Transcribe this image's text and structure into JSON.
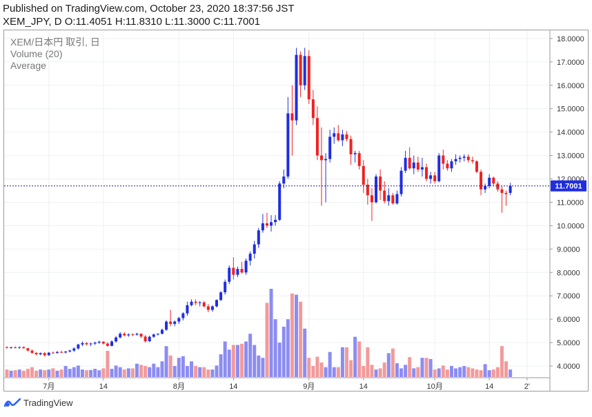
{
  "header": {
    "published": "Published on TradingView.com, October 23, 2020 18:37:56 JST",
    "ohlc": "XEM_JPY, D O:11.4051 H:11.8310 L:11.3000 C:11.7001"
  },
  "legend": {
    "symbol": "XEM/日本円 取引, 日",
    "volume": "Volume (20)",
    "average": "Average"
  },
  "footer": {
    "brand": "TradingView",
    "logo_icon": "tradingview-logo-icon"
  },
  "colors": {
    "up": "#1f2ee0",
    "down": "#ee2222",
    "vol_up": "#8c8cf2",
    "vol_down": "#f29a9a",
    "price_line": "#1a1a8a",
    "price_label_bg": "#1f2ee0"
  },
  "chart_data": {
    "type": "candlestick",
    "y_axis": {
      "ylim": [
        3.5,
        18.35
      ],
      "ticks": [
        "18.0000",
        "17.0000",
        "16.0000",
        "15.0000",
        "14.0000",
        "13.0000",
        "12.0000",
        "11.0000",
        "10.0000",
        "9.0000",
        "8.0000",
        "7.0000",
        "6.0000",
        "5.0000",
        "4.0000"
      ],
      "current_price_label": "11.7001",
      "current_price": 11.7001
    },
    "x_axis": {
      "ticks": [
        {
          "label": "7月",
          "index": 10
        },
        {
          "label": "14",
          "index": 23
        },
        {
          "label": "8月",
          "index": 41
        },
        {
          "label": "14",
          "index": 54
        },
        {
          "label": "9月",
          "index": 72
        },
        {
          "label": "14",
          "index": 85
        },
        {
          "label": "10月",
          "index": 102
        },
        {
          "label": "14",
          "index": 115
        },
        {
          "label": "2'",
          "index": 124
        }
      ]
    },
    "price_range": [
      7.4,
      17.6
    ],
    "volume_max": 7.3,
    "volume_baseline": 3.75,
    "volume_scale": 0.45,
    "candles": [
      [
        4.8,
        4.85,
        4.75,
        4.78
      ],
      [
        4.78,
        4.83,
        4.74,
        4.8
      ],
      [
        4.8,
        4.84,
        4.75,
        4.79
      ],
      [
        4.79,
        4.83,
        4.73,
        4.81
      ],
      [
        4.81,
        4.84,
        4.74,
        4.76
      ],
      [
        4.76,
        4.78,
        4.62,
        4.66
      ],
      [
        4.66,
        4.7,
        4.52,
        4.56
      ],
      [
        4.56,
        4.6,
        4.46,
        4.5
      ],
      [
        4.5,
        4.58,
        4.46,
        4.55
      ],
      [
        4.55,
        4.6,
        4.4,
        4.46
      ],
      [
        4.46,
        4.6,
        4.44,
        4.57
      ],
      [
        4.57,
        4.62,
        4.52,
        4.56
      ],
      [
        4.56,
        4.64,
        4.52,
        4.6
      ],
      [
        4.6,
        4.66,
        4.55,
        4.58
      ],
      [
        4.58,
        4.64,
        4.54,
        4.62
      ],
      [
        4.62,
        4.7,
        4.58,
        4.66
      ],
      [
        4.66,
        4.8,
        4.6,
        4.75
      ],
      [
        4.75,
        4.95,
        4.7,
        4.92
      ],
      [
        4.92,
        5.05,
        4.85,
        4.98
      ],
      [
        4.98,
        5.02,
        4.88,
        4.93
      ],
      [
        4.93,
        5.0,
        4.85,
        4.96
      ],
      [
        4.96,
        5.04,
        4.9,
        5.0
      ],
      [
        5.0,
        5.08,
        4.95,
        5.04
      ],
      [
        5.04,
        5.06,
        4.92,
        4.96
      ],
      [
        4.96,
        5.02,
        4.82,
        4.86
      ],
      [
        4.86,
        5.1,
        4.84,
        5.05
      ],
      [
        5.05,
        5.28,
        5.0,
        5.22
      ],
      [
        5.22,
        5.45,
        5.18,
        5.38
      ],
      [
        5.38,
        5.45,
        5.26,
        5.31
      ],
      [
        5.31,
        5.4,
        5.25,
        5.35
      ],
      [
        5.35,
        5.4,
        5.28,
        5.34
      ],
      [
        5.34,
        5.42,
        5.3,
        5.38
      ],
      [
        5.38,
        5.4,
        5.2,
        5.26
      ],
      [
        5.26,
        5.32,
        5.0,
        5.06
      ],
      [
        5.06,
        5.3,
        5.02,
        5.25
      ],
      [
        5.25,
        5.38,
        5.2,
        5.35
      ],
      [
        5.35,
        5.4,
        5.3,
        5.38
      ],
      [
        5.38,
        5.6,
        5.35,
        5.55
      ],
      [
        5.55,
        5.95,
        5.5,
        5.9
      ],
      [
        5.9,
        6.4,
        5.7,
        5.8
      ],
      [
        5.8,
        5.95,
        5.7,
        5.9
      ],
      [
        5.9,
        6.1,
        5.8,
        6.05
      ],
      [
        6.05,
        6.3,
        5.95,
        6.25
      ],
      [
        6.25,
        6.75,
        6.15,
        6.6
      ],
      [
        6.6,
        6.85,
        6.55,
        6.75
      ],
      [
        6.75,
        6.85,
        6.6,
        6.7
      ],
      [
        6.7,
        6.78,
        6.55,
        6.72
      ],
      [
        6.72,
        6.78,
        6.5,
        6.55
      ],
      [
        6.55,
        6.65,
        6.3,
        6.4
      ],
      [
        6.4,
        6.6,
        6.32,
        6.55
      ],
      [
        6.55,
        6.85,
        6.5,
        6.82
      ],
      [
        6.82,
        7.2,
        6.78,
        7.15
      ],
      [
        7.15,
        7.7,
        7.05,
        7.6
      ],
      [
        7.6,
        8.3,
        7.5,
        8.2
      ],
      [
        8.2,
        8.65,
        7.7,
        7.9
      ],
      [
        7.9,
        8.25,
        7.8,
        8.15
      ],
      [
        8.15,
        8.45,
        7.95,
        8.0
      ],
      [
        8.0,
        8.6,
        7.9,
        8.5
      ],
      [
        8.5,
        8.9,
        8.3,
        8.8
      ],
      [
        8.8,
        9.35,
        8.6,
        9.2
      ],
      [
        9.2,
        9.9,
        9.05,
        9.8
      ],
      [
        9.8,
        10.5,
        9.7,
        10.1
      ],
      [
        10.1,
        10.55,
        9.9,
        10.0
      ],
      [
        10.0,
        10.45,
        9.75,
        10.15
      ],
      [
        10.15,
        10.45,
        10.0,
        10.25
      ],
      [
        10.25,
        11.9,
        10.2,
        11.8
      ],
      [
        11.8,
        12.4,
        11.6,
        12.1
      ],
      [
        12.1,
        15.5,
        12.0,
        14.8
      ],
      [
        14.8,
        16.0,
        13.0,
        14.5
      ],
      [
        14.5,
        17.6,
        14.3,
        17.3
      ],
      [
        17.3,
        17.45,
        15.5,
        16.0
      ],
      [
        16.0,
        17.6,
        15.8,
        17.25
      ],
      [
        17.25,
        17.5,
        15.2,
        15.4
      ],
      [
        15.4,
        15.8,
        14.3,
        14.6
      ],
      [
        14.6,
        15.1,
        12.8,
        13.0
      ],
      [
        13.0,
        14.2,
        10.85,
        12.8
      ],
      [
        12.8,
        13.1,
        11.0,
        12.85
      ],
      [
        12.85,
        14.1,
        12.7,
        13.8
      ],
      [
        13.8,
        14.2,
        13.5,
        13.95
      ],
      [
        13.95,
        14.3,
        13.6,
        13.65
      ],
      [
        13.65,
        14.1,
        13.4,
        13.9
      ],
      [
        13.9,
        14.05,
        13.6,
        13.7
      ],
      [
        13.7,
        13.85,
        12.6,
        13.05
      ],
      [
        13.05,
        13.2,
        12.7,
        13.1
      ],
      [
        13.1,
        13.2,
        12.4,
        12.55
      ],
      [
        12.55,
        12.8,
        11.4,
        11.75
      ],
      [
        11.75,
        12.0,
        10.9,
        11.3
      ],
      [
        11.3,
        11.6,
        10.2,
        11.0
      ],
      [
        11.0,
        12.2,
        10.95,
        12.1
      ],
      [
        12.1,
        12.4,
        11.1,
        11.5
      ],
      [
        11.5,
        11.9,
        10.95,
        11.05
      ],
      [
        11.05,
        11.6,
        10.85,
        11.3
      ],
      [
        11.3,
        11.4,
        10.9,
        10.95
      ],
      [
        10.95,
        11.5,
        10.9,
        11.35
      ],
      [
        11.35,
        12.5,
        11.25,
        12.35
      ],
      [
        12.35,
        13.2,
        12.25,
        12.9
      ],
      [
        12.9,
        13.35,
        12.4,
        12.45
      ],
      [
        12.45,
        13.0,
        12.2,
        12.7
      ],
      [
        12.7,
        12.95,
        12.3,
        12.4
      ],
      [
        12.4,
        12.9,
        12.1,
        12.5
      ],
      [
        12.5,
        12.65,
        11.9,
        12.0
      ],
      [
        12.0,
        12.3,
        11.8,
        12.15
      ],
      [
        12.15,
        12.3,
        11.8,
        11.9
      ],
      [
        11.9,
        13.1,
        11.85,
        13.0
      ],
      [
        13.0,
        13.25,
        12.4,
        12.65
      ],
      [
        12.65,
        12.8,
        12.35,
        12.45
      ],
      [
        12.45,
        12.85,
        12.3,
        12.75
      ],
      [
        12.75,
        13.05,
        12.6,
        12.85
      ],
      [
        12.85,
        13.0,
        12.7,
        12.9
      ],
      [
        12.9,
        13.05,
        12.75,
        12.95
      ],
      [
        12.95,
        13.05,
        12.7,
        12.8
      ],
      [
        12.8,
        12.95,
        12.65,
        12.75
      ],
      [
        12.75,
        12.8,
        12.25,
        12.3
      ],
      [
        12.3,
        12.4,
        11.3,
        11.55
      ],
      [
        11.55,
        11.8,
        11.4,
        11.7
      ],
      [
        11.7,
        12.2,
        11.6,
        12.05
      ],
      [
        12.05,
        12.1,
        11.7,
        11.8
      ],
      [
        11.8,
        11.9,
        11.45,
        11.55
      ],
      [
        11.55,
        11.7,
        10.55,
        11.4
      ],
      [
        11.4,
        11.5,
        10.85,
        11.35
      ],
      [
        11.4,
        11.83,
        11.3,
        11.7
      ]
    ],
    "volumes": [
      3.85,
      3.8,
      3.82,
      3.85,
      3.8,
      3.88,
      3.95,
      3.8,
      3.85,
      3.82,
      3.85,
      3.9,
      3.8,
      3.85,
      4.0,
      3.88,
      3.95,
      4.02,
      3.85,
      3.82,
      3.83,
      3.88,
      3.82,
      3.9,
      4.65,
      3.88,
      4.02,
      3.95,
      3.85,
      3.9,
      3.9,
      4.1,
      4.05,
      4.0,
      3.95,
      4.1,
      3.95,
      4.2,
      4.85,
      4.45,
      4.0,
      4.35,
      4.42,
      4.0,
      4.2,
      4.0,
      3.95,
      3.95,
      3.85,
      3.85,
      4.02,
      4.5,
      5.05,
      4.7,
      4.9,
      4.9,
      4.95,
      5.05,
      5.38,
      4.9,
      4.45,
      4.35,
      6.7,
      7.3,
      6.0,
      5.0,
      5.68,
      6.0,
      7.1,
      7.05,
      6.75,
      5.6,
      4.35,
      4.0,
      4.4,
      4.15,
      3.95,
      4.6,
      3.95,
      3.95,
      4.8,
      4.8,
      4.25,
      5.25,
      5.05,
      4.0,
      4.8,
      4.05,
      3.85,
      3.9,
      4.15,
      4.55,
      4.75,
      4.12,
      3.9,
      4.05,
      4.38,
      3.9,
      3.95,
      4.35,
      4.35,
      4.3,
      3.85,
      3.9,
      4.02,
      3.85,
      4.0,
      3.9,
      3.95,
      4.0,
      3.95,
      3.9,
      3.85,
      3.82,
      4.08,
      3.82,
      3.85,
      3.95,
      4.85,
      4.2,
      3.85
    ]
  }
}
